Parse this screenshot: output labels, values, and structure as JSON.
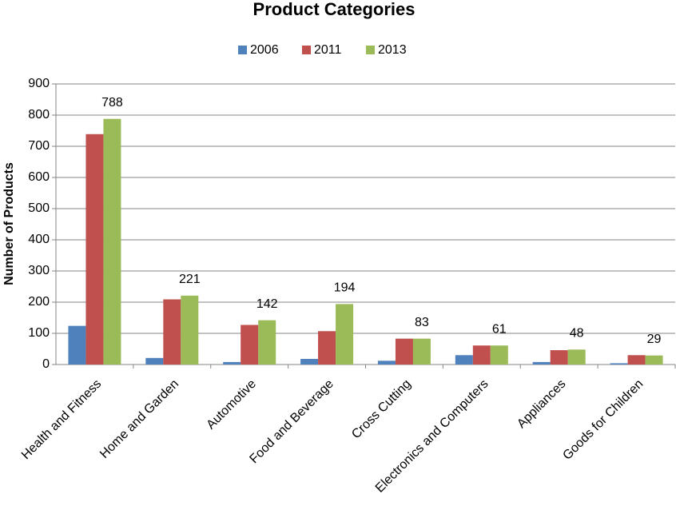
{
  "chart_data": {
    "type": "bar",
    "title": "Product Categories",
    "y_label": "Number of Products",
    "categories": [
      "Health and Fitness",
      "Home and Garden",
      "Automotive",
      "Food and Beverage",
      "Cross Cutting",
      "Electronics and Computers",
      "Appliances",
      "Goods for Children"
    ],
    "series": [
      {
        "name": "2006",
        "color": "#4f81bd",
        "values": [
          124,
          21,
          8,
          18,
          12,
          30,
          8,
          4
        ]
      },
      {
        "name": "2011",
        "color": "#c0504d",
        "values": [
          739,
          209,
          127,
          107,
          83,
          61,
          46,
          30
        ]
      },
      {
        "name": "2013",
        "color": "#9bbb59",
        "values": [
          788,
          221,
          142,
          194,
          83,
          61,
          48,
          29
        ],
        "data_labels": true
      }
    ],
    "ylim": [
      0,
      900
    ],
    "yticks": [
      0,
      100,
      200,
      300,
      400,
      500,
      600,
      700,
      800,
      900
    ],
    "grid": true,
    "legend": "top"
  }
}
